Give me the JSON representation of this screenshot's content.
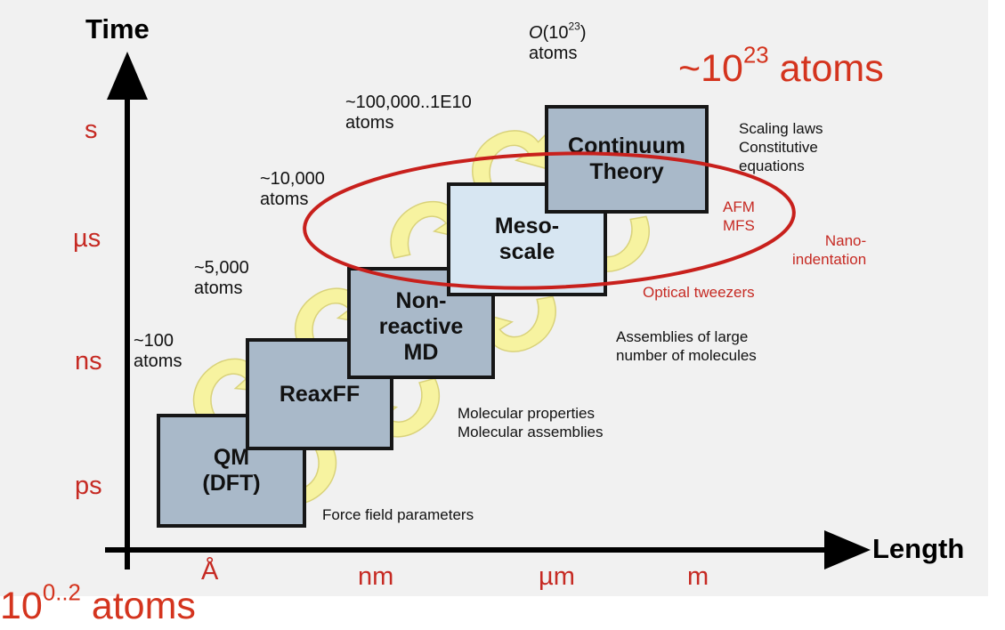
{
  "axes": {
    "y_name": "Time",
    "x_name": "Length",
    "y_ticks": [
      "s",
      "µs",
      "ns",
      "ps"
    ],
    "x_ticks": [
      "Å",
      "nm",
      "µm",
      "m"
    ]
  },
  "boxes": {
    "qm_line1": "QM",
    "qm_line2": "(DFT)",
    "reaxff": "ReaxFF",
    "md_line1": "Non-",
    "md_line2": "reactive",
    "md_line3": "MD",
    "meso_line1": "Meso-",
    "meso_line2": "scale",
    "cont_line1": "Continuum",
    "cont_line2": "Theory"
  },
  "atom_counts": {
    "c100_l1": "~100",
    "c100_l2": "atoms",
    "c5000_l1": "~5,000",
    "c5000_l2": "atoms",
    "c10000_l1": "~10,000",
    "c10000_l2": "atoms",
    "c1e10_l1": "~100,000..1E10",
    "c1e10_l2": "atoms",
    "o_prefix": "O",
    "o_base": "(10",
    "o_exp": "23",
    "o_suffix": ")",
    "o_l2": "atoms"
  },
  "annotations": {
    "force_field": "Force field parameters",
    "mol_props_l1": "Molecular properties",
    "mol_props_l2": "Molecular assemblies",
    "assemblies_l1": "Assemblies of large",
    "assemblies_l2": "number of molecules",
    "scaling_l1": "Scaling laws",
    "scaling_l2": "Constitutive",
    "scaling_l3": "equations",
    "afm": "AFM",
    "mfs": "MFS",
    "nano_l1": "Nano-",
    "nano_l2": "indentation",
    "optical": "Optical tweezers"
  },
  "overlay": {
    "top_prefix": "~10",
    "top_exp": "23",
    "top_suffix": " atoms",
    "bottom_base": "10",
    "bottom_exp": "0..2",
    "bottom_suffix": " atoms"
  },
  "colors": {
    "box_fill": "#a9b9c9",
    "box_fill_light": "#d7e6f2",
    "arrow_fill": "#f7f3a0",
    "accent_red": "#c62a23",
    "ellipse_red": "#c8201c"
  }
}
